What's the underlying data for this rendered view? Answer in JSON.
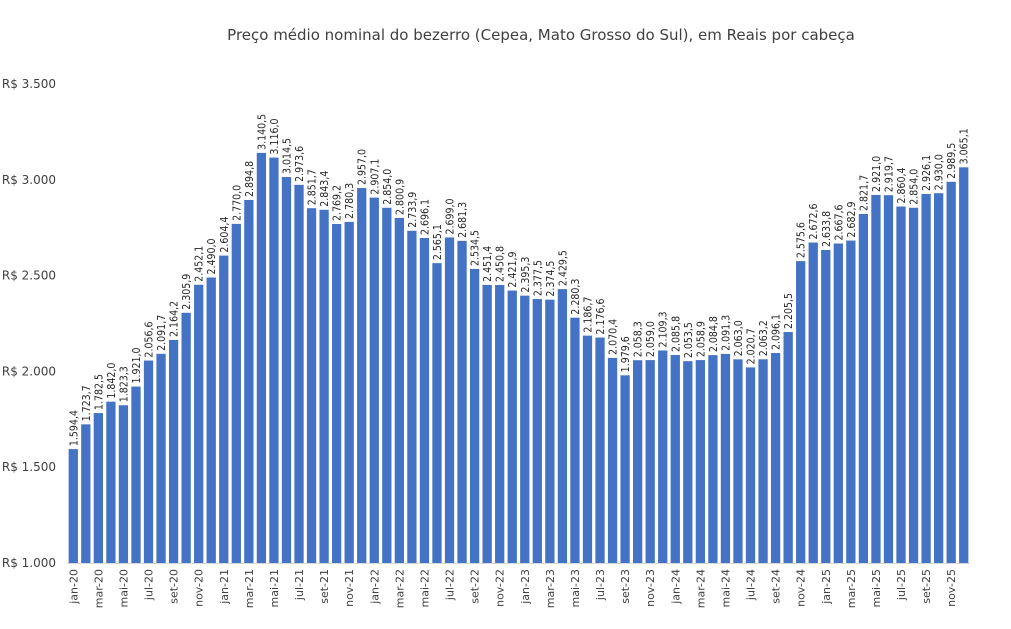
{
  "chart_data": {
    "type": "bar",
    "title": "Preço médio nominal do bezerro (Cepea, Mato Grosso do Sul), em Reais por cabeça",
    "xlabel": "",
    "ylabel": "",
    "ylim": [
      1000,
      3500
    ],
    "yticks": [
      {
        "value": 1000,
        "label": "R$ 1.000"
      },
      {
        "value": 1500,
        "label": "R$ 1.500"
      },
      {
        "value": 2000,
        "label": "R$ 2.000"
      },
      {
        "value": 2500,
        "label": "R$ 2.500"
      },
      {
        "value": 3000,
        "label": "R$ 3.000"
      },
      {
        "value": 3500,
        "label": "R$ 3.500"
      }
    ],
    "grid": false,
    "legend": "none",
    "bar_color": "#4472C4",
    "categories": [
      "jan-20",
      "fev-20",
      "mar-20",
      "abr-20",
      "mai-20",
      "jun-20",
      "jul-20",
      "ago-20",
      "set-20",
      "out-20",
      "nov-20",
      "dez-20",
      "jan-21",
      "fev-21",
      "mar-21",
      "abr-21",
      "mai-21",
      "jun-21",
      "jul-21",
      "ago-21",
      "set-21",
      "out-21",
      "nov-21",
      "dez-21",
      "jan-22",
      "fev-22",
      "mar-22",
      "abr-22",
      "mai-22",
      "jun-22",
      "jul-22",
      "ago-22",
      "set-22",
      "out-22",
      "nov-22",
      "dez-22",
      "jan-23",
      "fev-23",
      "mar-23",
      "abr-23",
      "mai-23",
      "jun-23",
      "jul-23",
      "ago-23",
      "set-23",
      "out-23",
      "nov-23",
      "dez-23",
      "jan-24",
      "fev-24",
      "mar-24",
      "abr-24",
      "mai-24",
      "jun-24",
      "jul-24",
      "ago-24",
      "set-24",
      "out-24",
      "nov-24",
      "dez-24",
      "jan-25",
      "fev-25",
      "mar-25",
      "abr-25",
      "mai-25",
      "jun-25",
      "jul-25",
      "ago-25",
      "set-25",
      "out-25",
      "nov-25",
      "dez-25"
    ],
    "visible_xticks": [
      "jan-20",
      "mar-20",
      "mai-20",
      "jul-20",
      "set-20",
      "nov-20",
      "jan-21",
      "mar-21",
      "mai-21",
      "jul-21",
      "set-21",
      "nov-21",
      "jan-22",
      "mar-22",
      "mai-22",
      "jul-22",
      "set-22",
      "nov-22",
      "jan-23",
      "mar-23",
      "mai-23",
      "jul-23",
      "set-23",
      "nov-23",
      "jan-24",
      "mar-24",
      "mai-24",
      "jul-24",
      "set-24",
      "nov-24",
      "jan-25",
      "mar-25",
      "mai-25",
      "jul-25",
      "set-25",
      "nov-25"
    ],
    "values": [
      1594.4,
      1723.7,
      1782.5,
      1842.0,
      1823.3,
      1921.0,
      2056.6,
      2091.7,
      2164.2,
      2305.9,
      2452.1,
      2490.0,
      2604.4,
      2770.0,
      2894.8,
      3140.5,
      3116.0,
      3014.5,
      2973.6,
      2851.7,
      2843.4,
      2769.2,
      2780.3,
      2957.0,
      2907.1,
      2854.0,
      2800.9,
      2733.9,
      2696.1,
      2565.1,
      2699.0,
      2681.3,
      2534.5,
      2451.4,
      2450.8,
      2421.9,
      2395.3,
      2377.5,
      2374.5,
      2429.5,
      2280.3,
      2186.7,
      2176.6,
      2070.4,
      1979.6,
      2058.3,
      2059.0,
      2109.3,
      2085.8,
      2053.5,
      2058.9,
      2084.8,
      2091.3,
      2063.0,
      2020.7,
      2063.2,
      2096.1,
      2205.5,
      2575.6,
      2672.6,
      2633.8,
      2667.6,
      2682.9,
      2821.7,
      2921.0,
      2919.7,
      2860.4,
      2854.0,
      2926.1,
      2930.0,
      2989.5,
      3065.1
    ],
    "value_labels": [
      "1.594,4",
      "1.723,7",
      "1.782,5",
      "1.842,0",
      "1.823,3",
      "1.921,0",
      "2.056,6",
      "2.091,7",
      "2.164,2",
      "2.305,9",
      "2.452,1",
      "2.490,0",
      "2.604,4",
      "2.770,0",
      "2.894,8",
      "3.140,5",
      "3.116,0",
      "3.014,5",
      "2.973,6",
      "2.851,7",
      "2.843,4",
      "2.769,2",
      "2.780,3",
      "2.957,0",
      "2.907,1",
      "2.854,0",
      "2.800,9",
      "2.733,9",
      "2.696,1",
      "2.565,1",
      "2.699,0",
      "2.681,3",
      "2.534,5",
      "2.451,4",
      "2.450,8",
      "2.421,9",
      "2.395,3",
      "2.377,5",
      "2.374,5",
      "2.429,5",
      "2.280,3",
      "2.186,7",
      "2.176,6",
      "2.070,4",
      "1.979,6",
      "2.058,3",
      "2.059,0",
      "2.109,3",
      "2.085,8",
      "2.053,5",
      "2.058,9",
      "2.084,8",
      "2.091,3",
      "2.063,0",
      "2.020,7",
      "2.063,2",
      "2.096,1",
      "2.205,5",
      "2.575,6",
      "2.672,6",
      "2.633,8",
      "2.667,6",
      "2.682,9",
      "2.821,7",
      "2.921,0",
      "2.919,7",
      "2.860,4",
      "2.854,0",
      "2.926,1",
      "2.930,0",
      "2.989,5",
      "3.065,1"
    ]
  }
}
